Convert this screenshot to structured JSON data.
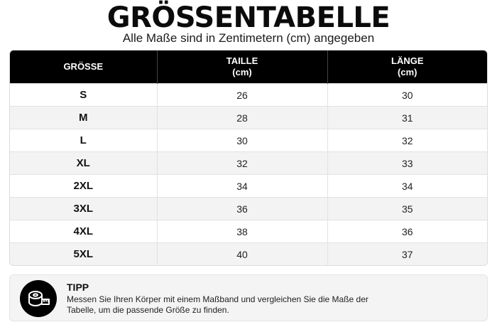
{
  "header": {
    "title": "GRÖSSENTABELLE",
    "subtitle": "Alle Maße sind in Zentimetern (cm) angegeben"
  },
  "table": {
    "columns": [
      {
        "line1": "GRÖSSE",
        "line2": ""
      },
      {
        "line1": "TAILLE",
        "line2": "(cm)"
      },
      {
        "line1": "LÄNGE",
        "line2": "(cm)"
      }
    ],
    "rows": [
      {
        "size": "S",
        "taille": "26",
        "laenge": "30"
      },
      {
        "size": "M",
        "taille": "28",
        "laenge": "31"
      },
      {
        "size": "L",
        "taille": "30",
        "laenge": "32"
      },
      {
        "size": "XL",
        "taille": "32",
        "laenge": "33"
      },
      {
        "size": "2XL",
        "taille": "34",
        "laenge": "34"
      },
      {
        "size": "3XL",
        "taille": "36",
        "laenge": "35"
      },
      {
        "size": "4XL",
        "taille": "38",
        "laenge": "36"
      },
      {
        "size": "5XL",
        "taille": "40",
        "laenge": "37"
      }
    ]
  },
  "tip": {
    "icon": "measuring-tape-icon",
    "title": "TIPP",
    "text": "Messen Sie Ihren Körper mit einem Maßband und vergleichen Sie die Maße der Tabelle, um die passende Größe zu finden."
  },
  "colors": {
    "header_bg": "#000000",
    "header_text": "#ffffff",
    "row_alt": "#f3f3f3",
    "tip_bg": "#f4f4f4"
  }
}
